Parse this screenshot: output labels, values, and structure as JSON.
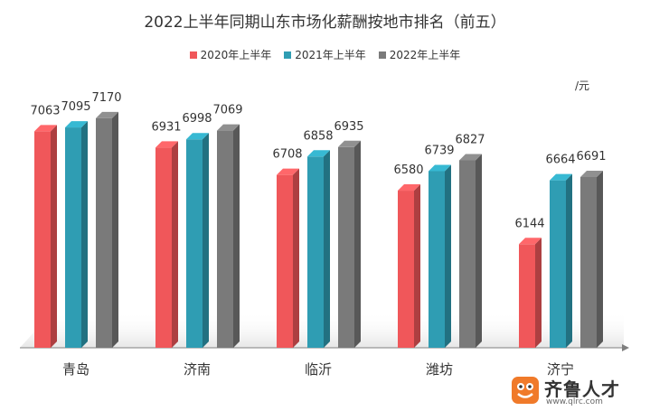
{
  "chart_data": {
    "type": "bar",
    "title": "2022上半年同期山东市场化薪酬按地市排名（前五）",
    "unit": "/元",
    "categories": [
      "青岛",
      "济南",
      "临沂",
      "潍坊",
      "济宁"
    ],
    "series": [
      {
        "name": "2020年上半年",
        "color": "#f0575a",
        "values": [
          7063,
          6931,
          6708,
          6580,
          6144
        ]
      },
      {
        "name": "2021年上半年",
        "color": "#2f9db3",
        "values": [
          7095,
          6998,
          6858,
          6739,
          6664
        ]
      },
      {
        "name": "2022年上半年",
        "color": "#7a7a7a",
        "values": [
          7170,
          7069,
          6935,
          6827,
          6691
        ]
      }
    ],
    "ylim": [
      5300,
      7250
    ],
    "legend_position": "top",
    "grid": false
  },
  "watermark": {
    "name": "齐鲁人才",
    "url": "www.qlrc.com"
  }
}
